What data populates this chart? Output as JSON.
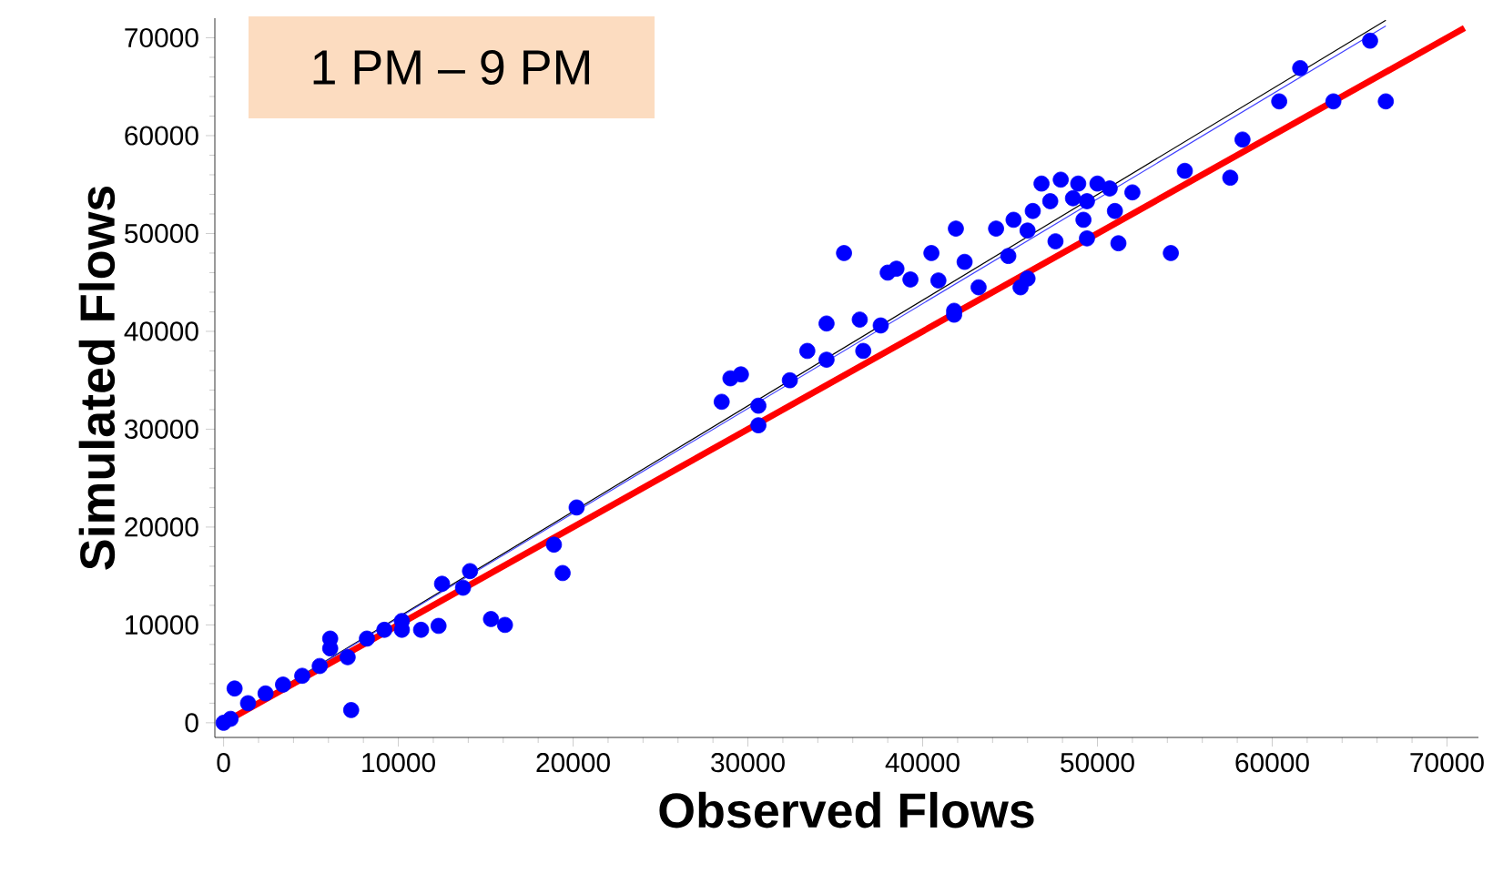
{
  "chart_data": {
    "type": "scatter",
    "title": "1 PM – 9 PM",
    "xlabel": "Observed Flows",
    "ylabel": "Simulated Flows",
    "xlim": [
      -500,
      71800
    ],
    "ylim": [
      -1500,
      72000
    ],
    "xticks": [
      0,
      10000,
      20000,
      30000,
      40000,
      50000,
      60000,
      70000
    ],
    "yticks": [
      0,
      10000,
      20000,
      30000,
      40000,
      50000,
      60000,
      70000
    ],
    "grid": false,
    "series": [
      {
        "marker": "circle",
        "color": "#0000ff",
        "x": [
          0,
          630,
          7300,
          19400,
          15300,
          16100,
          18900,
          20200,
          29600,
          28500,
          30600,
          30600,
          32400,
          33400,
          34500,
          34500,
          36400,
          36600,
          37600,
          41800,
          43200,
          29000,
          35500,
          38000,
          39300,
          65600,
          61600,
          60400,
          63500,
          66500,
          58300,
          57600,
          55000,
          54200,
          51200,
          52000,
          51000,
          41900,
          44200,
          40500,
          38500,
          42400,
          45600,
          46000,
          47600,
          49200,
          49400,
          40900,
          41800,
          44900,
          46800,
          47900,
          48900,
          50000,
          50700,
          47300,
          48600,
          46300,
          45200,
          46000,
          49400,
          400,
          1400,
          2400,
          3400,
          4500,
          5500,
          6100,
          7100,
          8200,
          9200,
          10200,
          11300,
          10200,
          12300,
          13700,
          14100,
          12500,
          6100
        ],
        "values": [
          0,
          3500,
          1300,
          15300,
          10600,
          10000,
          18200,
          22000,
          35600,
          32800,
          32400,
          30400,
          35000,
          38000,
          40800,
          37100,
          41200,
          38000,
          40600,
          41700,
          44500,
          35200,
          48000,
          46000,
          45300,
          69700,
          66900,
          63500,
          63500,
          63500,
          59600,
          55700,
          56400,
          48000,
          49000,
          54200,
          52300,
          50500,
          50500,
          48000,
          46400,
          47100,
          44500,
          45400,
          49200,
          51400,
          49500,
          45200,
          42100,
          47700,
          55100,
          55500,
          55100,
          55100,
          54600,
          53300,
          53600,
          52300,
          51400,
          50300,
          53300,
          400,
          2000,
          3000,
          3900,
          4800,
          5800,
          7600,
          6700,
          8600,
          9500,
          9500,
          9500,
          10400,
          9900,
          13800,
          15500,
          14200,
          8600
        ]
      },
      {
        "type": "line",
        "marker": "none",
        "color": "#000000",
        "x": [
          0,
          66500
        ],
        "values": [
          0,
          71800
        ]
      },
      {
        "type": "line",
        "marker": "none",
        "color": "#4040ff",
        "x": [
          0,
          66500
        ],
        "values": [
          0,
          71200
        ]
      },
      {
        "type": "line",
        "marker": "none",
        "color": "#ff0000",
        "x": [
          0,
          71000
        ],
        "values": [
          0,
          71000
        ]
      }
    ]
  }
}
